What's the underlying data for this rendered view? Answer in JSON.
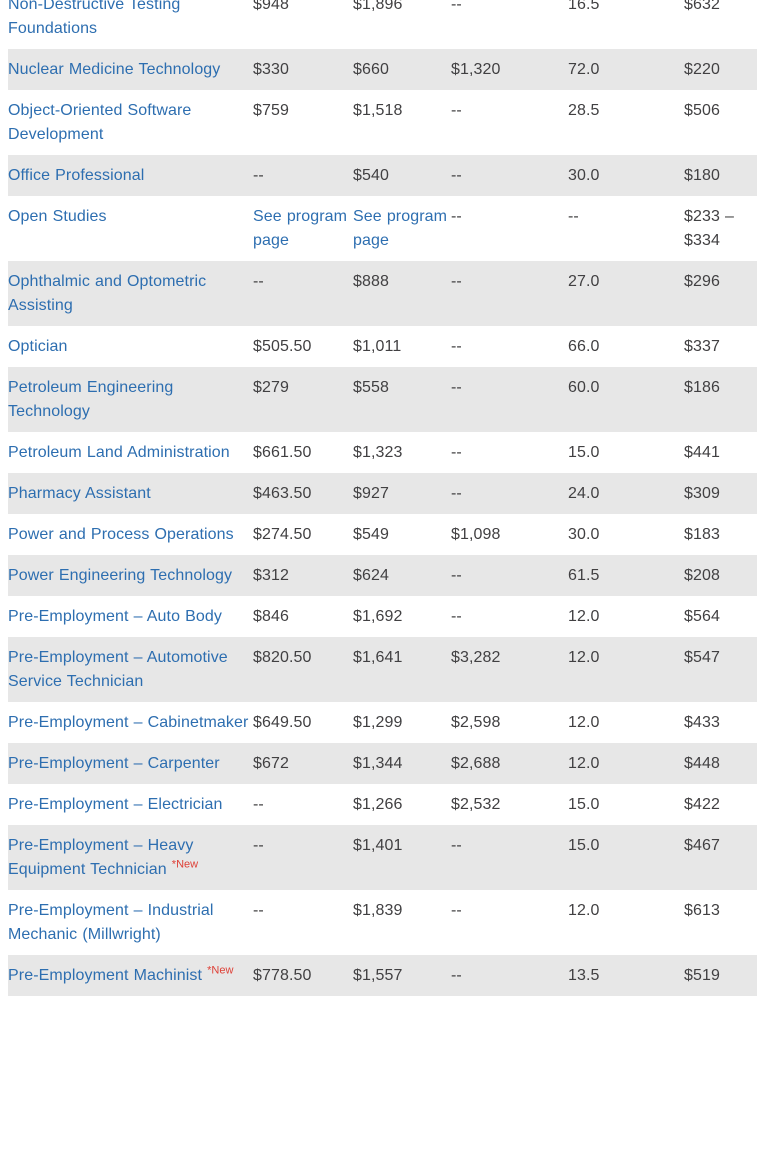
{
  "table": {
    "description": "Program tuition and fees table (partial scroll view)",
    "link_color": "#2d6eb0",
    "stripe_color": "#e7e7e7",
    "text_color": "#414042",
    "new_badge": "*New",
    "new_badge_color": "#de4037",
    "rows": [
      {
        "program": "Non-Destructive Testing Foundations",
        "new": false,
        "values": [
          {
            "text": "$948"
          },
          {
            "text": "$1,896"
          },
          {
            "text": "--"
          },
          {
            "text": "16.5"
          },
          {
            "text": "$632"
          }
        ]
      },
      {
        "program": "Nuclear Medicine Technology",
        "new": false,
        "values": [
          {
            "text": "$330"
          },
          {
            "text": "$660"
          },
          {
            "text": "$1,320"
          },
          {
            "text": "72.0"
          },
          {
            "text": "$220"
          }
        ]
      },
      {
        "program": "Object-Oriented Software Development",
        "new": false,
        "values": [
          {
            "text": "$759"
          },
          {
            "text": "$1,518"
          },
          {
            "text": "--"
          },
          {
            "text": "28.5"
          },
          {
            "text": "$506"
          }
        ]
      },
      {
        "program": "Office Professional",
        "new": false,
        "values": [
          {
            "text": "--"
          },
          {
            "text": "$540"
          },
          {
            "text": "--"
          },
          {
            "text": "30.0"
          },
          {
            "text": "$180"
          }
        ]
      },
      {
        "program": "Open Studies",
        "new": false,
        "values": [
          {
            "text": "See program page",
            "link": true
          },
          {
            "text": "See program page",
            "link": true
          },
          {
            "text": "--"
          },
          {
            "text": "--"
          },
          {
            "text": "$233 – $334"
          }
        ]
      },
      {
        "program": "Ophthalmic and Optometric Assisting",
        "new": false,
        "values": [
          {
            "text": "--"
          },
          {
            "text": "$888"
          },
          {
            "text": "--"
          },
          {
            "text": "27.0"
          },
          {
            "text": "$296"
          }
        ]
      },
      {
        "program": "Optician",
        "new": false,
        "values": [
          {
            "text": "$505.50"
          },
          {
            "text": "$1,011"
          },
          {
            "text": "--"
          },
          {
            "text": "66.0"
          },
          {
            "text": "$337"
          }
        ]
      },
      {
        "program": "Petroleum Engineering Technology",
        "new": false,
        "values": [
          {
            "text": "$279"
          },
          {
            "text": "$558"
          },
          {
            "text": "--"
          },
          {
            "text": "60.0"
          },
          {
            "text": "$186"
          }
        ]
      },
      {
        "program": "Petroleum Land Administration",
        "new": false,
        "values": [
          {
            "text": "$661.50"
          },
          {
            "text": "$1,323"
          },
          {
            "text": "--"
          },
          {
            "text": "15.0"
          },
          {
            "text": "$441"
          }
        ]
      },
      {
        "program": "Pharmacy Assistant",
        "new": false,
        "values": [
          {
            "text": "$463.50"
          },
          {
            "text": "$927"
          },
          {
            "text": "--"
          },
          {
            "text": "24.0"
          },
          {
            "text": "$309"
          }
        ]
      },
      {
        "program": "Power and Process Operations",
        "new": false,
        "values": [
          {
            "text": "$274.50"
          },
          {
            "text": "$549"
          },
          {
            "text": "$1,098"
          },
          {
            "text": "30.0"
          },
          {
            "text": "$183"
          }
        ]
      },
      {
        "program": "Power Engineering Technology",
        "new": false,
        "values": [
          {
            "text": "$312"
          },
          {
            "text": "$624"
          },
          {
            "text": "--"
          },
          {
            "text": "61.5"
          },
          {
            "text": "$208"
          }
        ]
      },
      {
        "program": "Pre-Employment – Auto Body",
        "new": false,
        "values": [
          {
            "text": "$846"
          },
          {
            "text": "$1,692"
          },
          {
            "text": "--"
          },
          {
            "text": "12.0"
          },
          {
            "text": "$564"
          }
        ]
      },
      {
        "program": "Pre-Employment – Automotive Service Technician",
        "new": false,
        "values": [
          {
            "text": "$820.50"
          },
          {
            "text": "$1,641"
          },
          {
            "text": "$3,282"
          },
          {
            "text": "12.0"
          },
          {
            "text": "$547"
          }
        ]
      },
      {
        "program": "Pre-Employment – Cabinetmaker",
        "new": false,
        "values": [
          {
            "text": "$649.50"
          },
          {
            "text": "$1,299"
          },
          {
            "text": "$2,598"
          },
          {
            "text": "12.0"
          },
          {
            "text": "$433"
          }
        ]
      },
      {
        "program": "Pre-Employment – Carpenter",
        "new": false,
        "values": [
          {
            "text": "$672"
          },
          {
            "text": "$1,344"
          },
          {
            "text": "$2,688"
          },
          {
            "text": "12.0"
          },
          {
            "text": "$448"
          }
        ]
      },
      {
        "program": "Pre-Employment – Electrician",
        "new": false,
        "values": [
          {
            "text": "--"
          },
          {
            "text": "$1,266"
          },
          {
            "text": "$2,532"
          },
          {
            "text": "15.0"
          },
          {
            "text": "$422"
          }
        ]
      },
      {
        "program": "Pre-Employment – Heavy Equipment Technician",
        "new": true,
        "values": [
          {
            "text": "--"
          },
          {
            "text": "$1,401"
          },
          {
            "text": "--"
          },
          {
            "text": "15.0"
          },
          {
            "text": "$467"
          }
        ]
      },
      {
        "program": "Pre-Employment – Industrial Mechanic (Millwright)",
        "new": false,
        "values": [
          {
            "text": "--"
          },
          {
            "text": "$1,839"
          },
          {
            "text": "--"
          },
          {
            "text": "12.0"
          },
          {
            "text": "$613"
          }
        ]
      },
      {
        "program": "Pre-Employment Machinist",
        "new": true,
        "values": [
          {
            "text": "$778.50"
          },
          {
            "text": "$1,557"
          },
          {
            "text": "--"
          },
          {
            "text": "13.5"
          },
          {
            "text": "$519"
          }
        ]
      }
    ]
  }
}
